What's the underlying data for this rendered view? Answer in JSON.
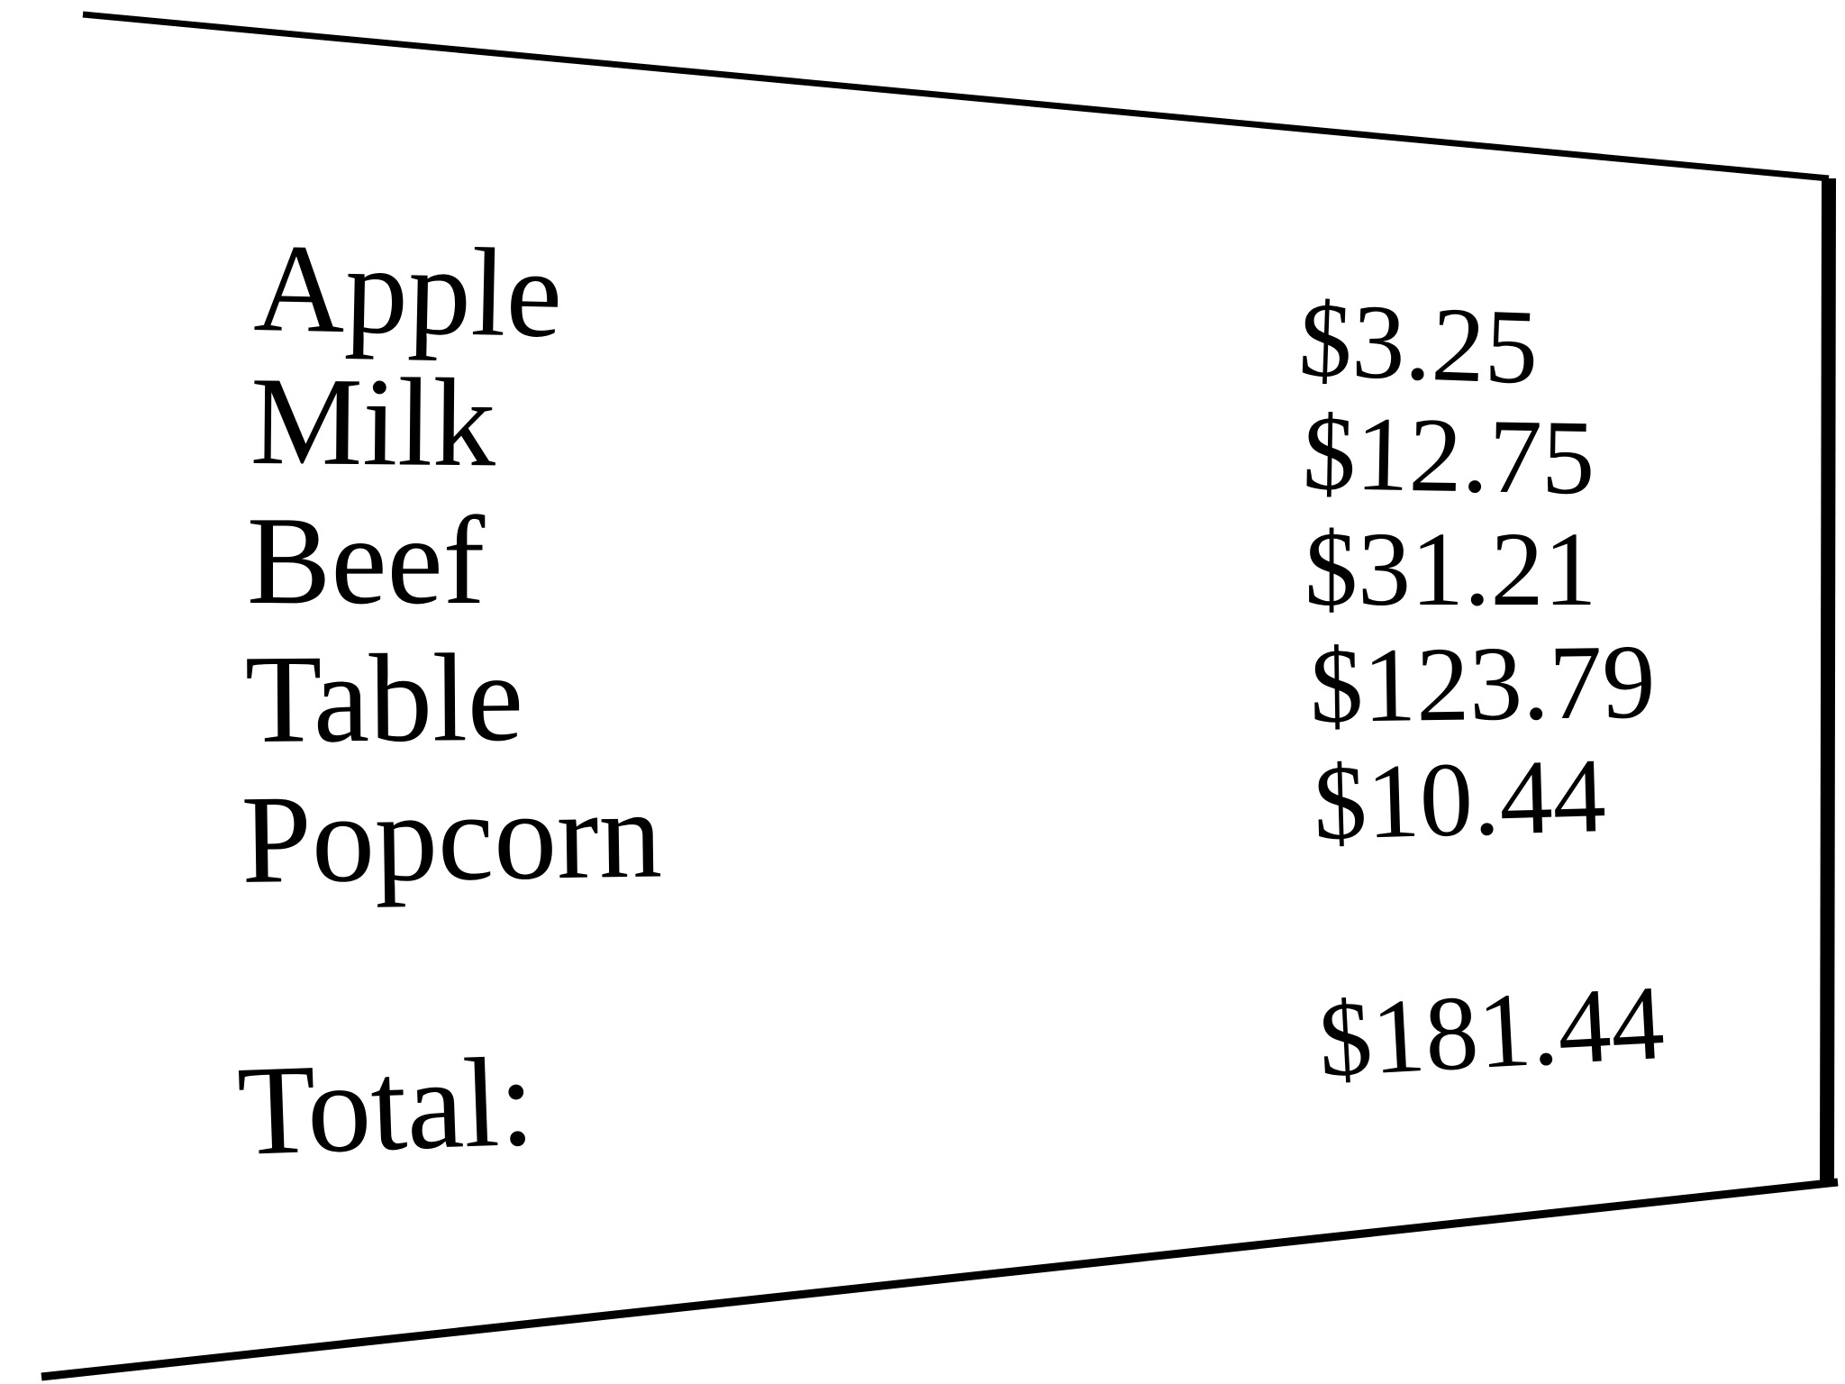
{
  "receipt": {
    "items": [
      {
        "name": "Apple",
        "price": "$3.25"
      },
      {
        "name": "Milk",
        "price": "$12.75"
      },
      {
        "name": "Beef",
        "price": "$31.21"
      },
      {
        "name": "Table",
        "price": "$123.79"
      },
      {
        "name": "Popcorn",
        "price": "$10.44"
      }
    ],
    "total_label": "Total:",
    "total_value": "$181.44"
  }
}
